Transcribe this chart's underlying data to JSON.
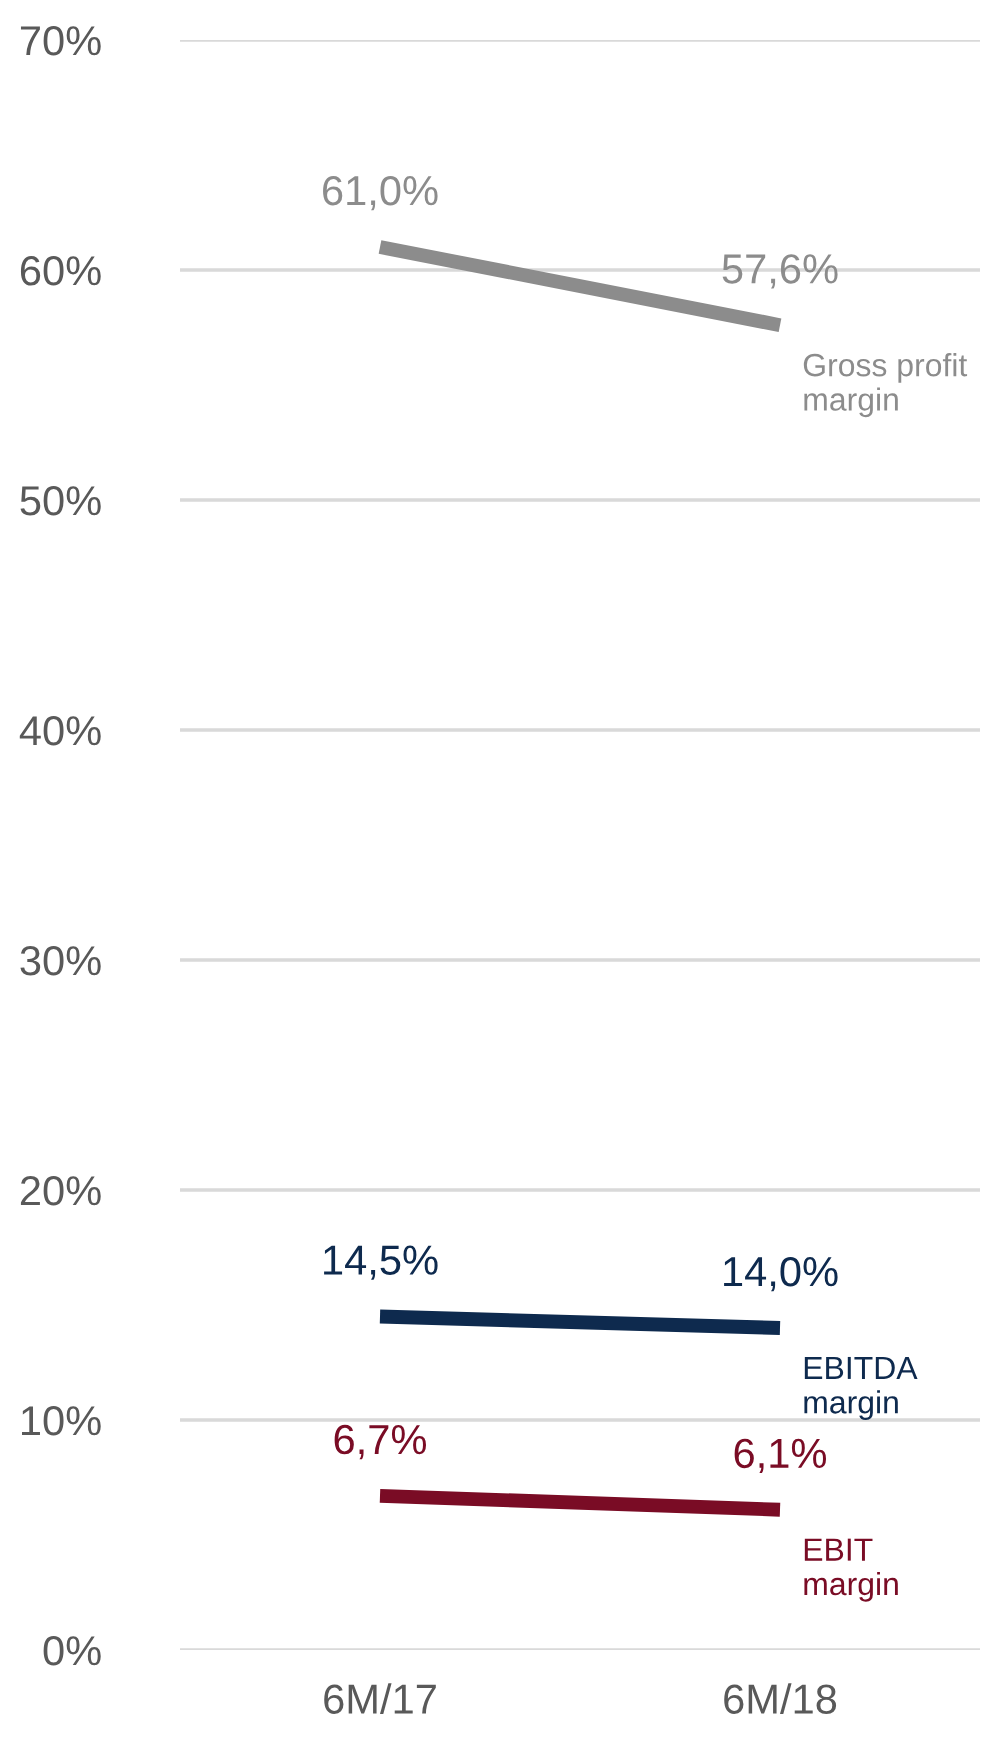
{
  "chart_data": {
    "type": "line",
    "categories": [
      "6M/17",
      "6M/18"
    ],
    "series": [
      {
        "name": "Gross profit\nmargin",
        "color": "#8c8c8c",
        "values": [
          61.0,
          57.6
        ],
        "value_labels": [
          "61,0%",
          "57,6%"
        ]
      },
      {
        "name": "EBITDA\nmargin",
        "color": "#0e2a4e",
        "values": [
          14.5,
          14.0
        ],
        "value_labels": [
          "14,5%",
          "14,0%"
        ]
      },
      {
        "name": "EBIT\nmargin",
        "color": "#7a0c25",
        "values": [
          6.7,
          6.1
        ],
        "value_labels": [
          "6,7%",
          "6,1%"
        ]
      }
    ],
    "ylim": [
      0,
      70
    ],
    "yticks": [
      {
        "value": 0,
        "label": "0%"
      },
      {
        "value": 10,
        "label": "10%"
      },
      {
        "value": 20,
        "label": "20%"
      },
      {
        "value": 30,
        "label": "30%"
      },
      {
        "value": 40,
        "label": "40%"
      },
      {
        "value": 50,
        "label": "50%"
      },
      {
        "value": 60,
        "label": "60%"
      },
      {
        "value": 70,
        "label": "70%"
      }
    ],
    "grid": "y"
  }
}
